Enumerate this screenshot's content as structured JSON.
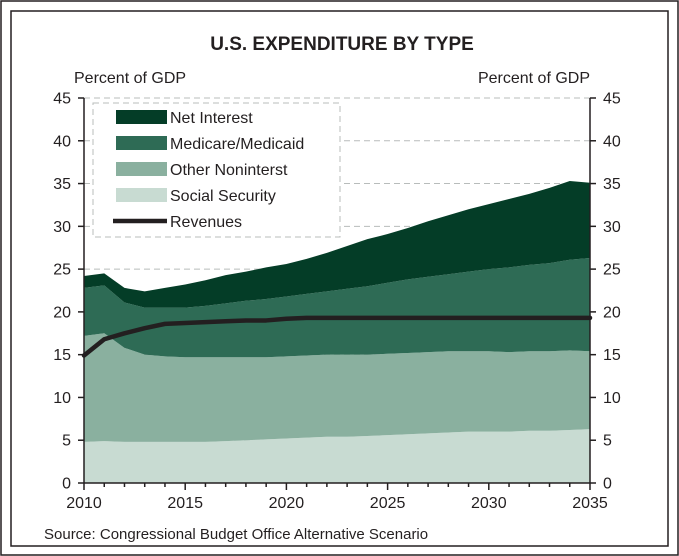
{
  "chart_data": {
    "type": "area",
    "title": "U.S. EXPENDITURE BY TYPE",
    "ylabel_left": "Percent of GDP",
    "ylabel_right": "Percent of GDP",
    "source": "Source: Congressional Budget Office Alternative Scenario",
    "x": [
      2010,
      2011,
      2012,
      2013,
      2014,
      2015,
      2016,
      2017,
      2018,
      2019,
      2020,
      2021,
      2022,
      2023,
      2024,
      2025,
      2026,
      2027,
      2028,
      2029,
      2030,
      2031,
      2032,
      2033,
      2034,
      2035
    ],
    "x_ticks": [
      "2010",
      "2015",
      "2020",
      "2025",
      "2030",
      "2035"
    ],
    "x_tick_values": [
      2010,
      2015,
      2020,
      2025,
      2030,
      2035
    ],
    "y_ticks": [
      "0",
      "5",
      "10",
      "15",
      "20",
      "25",
      "30",
      "35",
      "40",
      "45"
    ],
    "y_tick_values": [
      0,
      5,
      10,
      15,
      20,
      25,
      30,
      35,
      40,
      45
    ],
    "xlim": [
      2010,
      2035
    ],
    "ylim": [
      0,
      45
    ],
    "stacked": true,
    "grid": true,
    "legend_position": "top-left",
    "series": [
      {
        "name": "Social Security",
        "kind": "area",
        "color": "#c8dbd2",
        "values": [
          4.8,
          4.9,
          4.8,
          4.8,
          4.8,
          4.8,
          4.8,
          4.9,
          5.0,
          5.1,
          5.2,
          5.3,
          5.4,
          5.4,
          5.5,
          5.6,
          5.7,
          5.8,
          5.9,
          6.0,
          6.0,
          6.0,
          6.1,
          6.1,
          6.2,
          6.3
        ]
      },
      {
        "name": "Other Noninterst",
        "kind": "area",
        "color": "#8ab09f",
        "values": [
          12.4,
          12.6,
          11.0,
          10.2,
          10.0,
          9.9,
          9.9,
          9.8,
          9.7,
          9.6,
          9.6,
          9.6,
          9.6,
          9.6,
          9.5,
          9.5,
          9.5,
          9.5,
          9.5,
          9.4,
          9.4,
          9.3,
          9.3,
          9.3,
          9.3,
          9.1
        ]
      },
      {
        "name": "Medicare/Medicaid",
        "kind": "area",
        "color": "#2e6b55",
        "values": [
          5.6,
          5.6,
          5.3,
          5.5,
          5.7,
          5.8,
          6.0,
          6.3,
          6.6,
          6.8,
          7.0,
          7.2,
          7.4,
          7.7,
          8.0,
          8.3,
          8.6,
          8.8,
          9.0,
          9.3,
          9.6,
          9.9,
          10.1,
          10.3,
          10.6,
          10.9
        ]
      },
      {
        "name": "Net Interest",
        "kind": "area",
        "color": "#043d27",
        "values": [
          1.4,
          1.4,
          1.7,
          1.9,
          2.3,
          2.7,
          3.0,
          3.3,
          3.4,
          3.7,
          3.8,
          4.1,
          4.5,
          5.0,
          5.5,
          5.7,
          6.0,
          6.5,
          6.9,
          7.3,
          7.6,
          8.0,
          8.3,
          8.8,
          9.2,
          8.8
        ]
      },
      {
        "name": "Revenues",
        "kind": "line",
        "color": "#231f20",
        "values": [
          14.9,
          16.8,
          17.5,
          18.1,
          18.6,
          18.7,
          18.8,
          18.9,
          19.0,
          19.0,
          19.2,
          19.3,
          19.3,
          19.3,
          19.3,
          19.3,
          19.3,
          19.3,
          19.3,
          19.3,
          19.3,
          19.3,
          19.3,
          19.3,
          19.3,
          19.3
        ]
      }
    ],
    "legend": [
      {
        "name": "Net Interest",
        "swatch": "box",
        "color": "#043d27"
      },
      {
        "name": "Medicare/Medicaid",
        "swatch": "box",
        "color": "#2e6b55"
      },
      {
        "name": "Other Noninterst",
        "swatch": "box",
        "color": "#8ab09f"
      },
      {
        "name": "Social Security",
        "swatch": "box",
        "color": "#c8dbd2"
      },
      {
        "name": "Revenues",
        "swatch": "line",
        "color": "#231f20"
      }
    ]
  }
}
